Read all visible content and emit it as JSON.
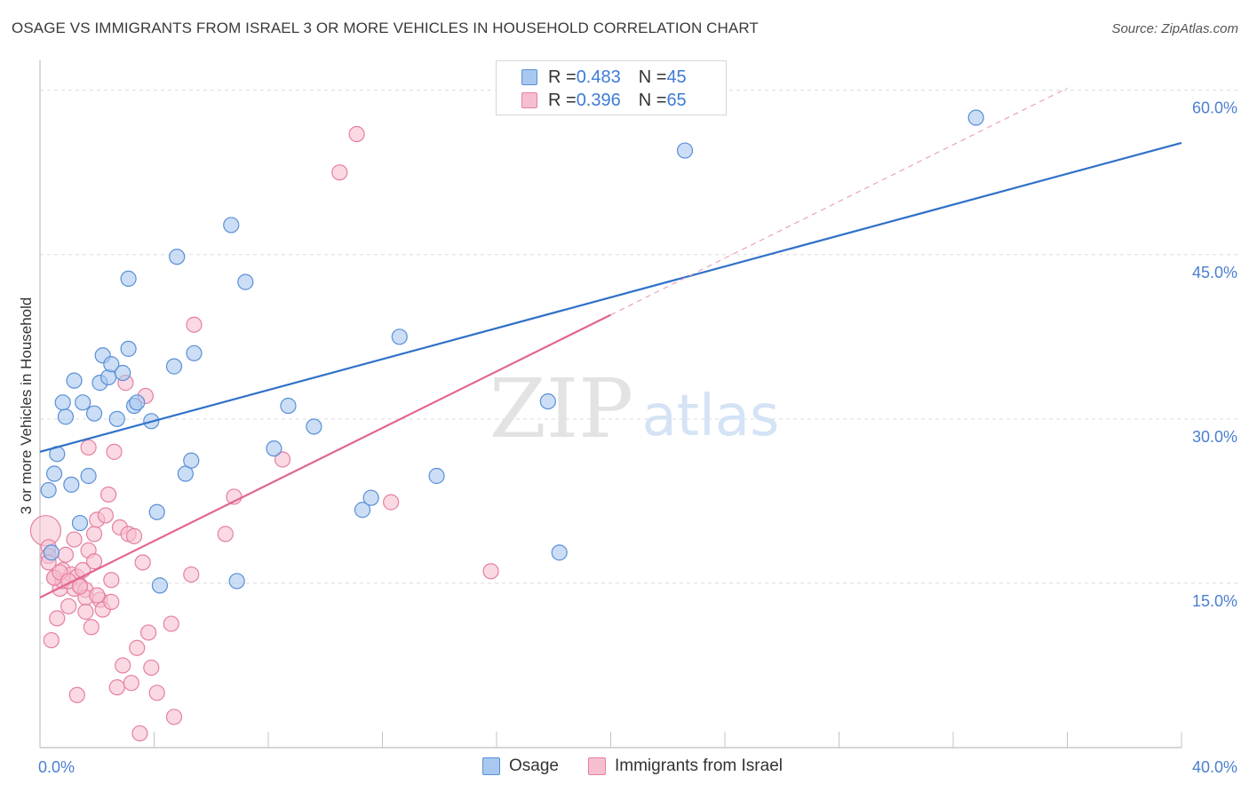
{
  "title": "OSAGE VS IMMIGRANTS FROM ISRAEL 3 OR MORE VEHICLES IN HOUSEHOLD CORRELATION CHART",
  "source": "Source: ZipAtlas.com",
  "watermark": {
    "zip": "ZIP",
    "atlas": "atlas"
  },
  "legend_top": [
    {
      "r_label": "R = ",
      "r_value": "0.483",
      "n_label": "N = ",
      "n_value": "45"
    },
    {
      "r_label": "R = ",
      "r_value": "0.396",
      "n_label": "N = ",
      "n_value": "65"
    }
  ],
  "legend_bottom": [
    "Osage",
    "Immigrants from Israel"
  ],
  "colors": {
    "osage_fill": "#a9c8ef",
    "osage_stroke": "#5a8fd8",
    "osage_line": "#2f70c8",
    "israel_fill": "#f6bfd0",
    "israel_stroke": "#e5809f",
    "israel_line": "#e0678f",
    "tick_text": "#4a7fd0",
    "grid": "#dcdcdc"
  },
  "chart_data": {
    "type": "scatter",
    "title": "OSAGE VS IMMIGRANTS FROM ISRAEL 3 OR MORE VEHICLES IN HOUSEHOLD CORRELATION CHART",
    "xlabel": "",
    "ylabel": "3 or more Vehicles in Household",
    "xlim": [
      0,
      40
    ],
    "ylim": [
      0,
      62
    ],
    "x_tick_labels": [
      {
        "value": 0,
        "label": "0.0%"
      },
      {
        "value": 40,
        "label": "40.0%"
      }
    ],
    "y_tick_labels": [
      {
        "value": 15,
        "label": "15.0%"
      },
      {
        "value": 30,
        "label": "30.0%"
      },
      {
        "value": 45,
        "label": "45.0%"
      },
      {
        "value": 60,
        "label": "60.0%"
      }
    ],
    "grid": true,
    "legend_position": "top-center",
    "series": [
      {
        "name": "Osage",
        "r": 0.483,
        "n": 45,
        "trend": {
          "x0": 0,
          "y0": 27.0,
          "x1": 40,
          "y1": 55.2,
          "dashed_extension": false
        },
        "points": [
          [
            0.3,
            23.5
          ],
          [
            0.4,
            17.8
          ],
          [
            0.5,
            25.0
          ],
          [
            0.6,
            26.8
          ],
          [
            0.8,
            31.5
          ],
          [
            0.9,
            30.2
          ],
          [
            1.1,
            24.0
          ],
          [
            1.2,
            33.5
          ],
          [
            1.4,
            20.5
          ],
          [
            1.5,
            31.5
          ],
          [
            1.7,
            24.8
          ],
          [
            1.9,
            30.5
          ],
          [
            2.1,
            33.3
          ],
          [
            2.2,
            35.8
          ],
          [
            2.4,
            33.8
          ],
          [
            2.5,
            35.0
          ],
          [
            2.7,
            30.0
          ],
          [
            2.9,
            34.2
          ],
          [
            3.1,
            42.8
          ],
          [
            3.1,
            36.4
          ],
          [
            3.3,
            31.2
          ],
          [
            3.4,
            31.5
          ],
          [
            3.9,
            29.8
          ],
          [
            4.1,
            21.5
          ],
          [
            4.2,
            14.8
          ],
          [
            4.7,
            34.8
          ],
          [
            4.8,
            44.8
          ],
          [
            5.1,
            25.0
          ],
          [
            5.3,
            26.2
          ],
          [
            5.4,
            36.0
          ],
          [
            6.7,
            47.7
          ],
          [
            6.9,
            15.2
          ],
          [
            7.2,
            42.5
          ],
          [
            8.2,
            27.3
          ],
          [
            8.7,
            31.2
          ],
          [
            9.6,
            29.3
          ],
          [
            11.3,
            21.7
          ],
          [
            11.6,
            22.8
          ],
          [
            12.6,
            37.5
          ],
          [
            13.9,
            24.8
          ],
          [
            17.8,
            31.6
          ],
          [
            18.2,
            17.8
          ],
          [
            22.6,
            54.5
          ],
          [
            23.2,
            58.7
          ],
          [
            32.8,
            57.5
          ]
        ]
      },
      {
        "name": "Immigrants from Israel",
        "r": 0.396,
        "n": 65,
        "trend": {
          "x0": 0,
          "y0": 13.7,
          "x1": 20,
          "y1": 39.5,
          "dashed_extension": true,
          "dashed_to": {
            "x": 36,
            "y": 60.2
          }
        },
        "points": [
          [
            0.2,
            19.8
          ],
          [
            0.3,
            18.3
          ],
          [
            0.3,
            17.5
          ],
          [
            0.4,
            9.8
          ],
          [
            0.5,
            15.5
          ],
          [
            0.6,
            11.8
          ],
          [
            0.7,
            14.5
          ],
          [
            0.8,
            15.2
          ],
          [
            0.8,
            16.2
          ],
          [
            0.9,
            17.6
          ],
          [
            1.0,
            12.9
          ],
          [
            1.1,
            15.8
          ],
          [
            1.2,
            19.0
          ],
          [
            1.2,
            14.5
          ],
          [
            1.3,
            15.6
          ],
          [
            1.3,
            4.8
          ],
          [
            1.4,
            14.8
          ],
          [
            1.5,
            16.2
          ],
          [
            1.6,
            14.4
          ],
          [
            1.6,
            13.7
          ],
          [
            1.6,
            12.4
          ],
          [
            1.7,
            27.4
          ],
          [
            1.7,
            18.0
          ],
          [
            1.8,
            11.0
          ],
          [
            1.9,
            17.0
          ],
          [
            1.9,
            19.5
          ],
          [
            2.0,
            20.8
          ],
          [
            2.1,
            13.5
          ],
          [
            2.2,
            12.6
          ],
          [
            2.3,
            21.2
          ],
          [
            2.4,
            23.1
          ],
          [
            2.5,
            13.3
          ],
          [
            2.5,
            15.3
          ],
          [
            2.6,
            27.0
          ],
          [
            2.7,
            5.5
          ],
          [
            2.8,
            20.1
          ],
          [
            2.9,
            7.5
          ],
          [
            3.0,
            33.3
          ],
          [
            3.1,
            19.5
          ],
          [
            3.2,
            5.9
          ],
          [
            3.3,
            19.3
          ],
          [
            3.4,
            9.1
          ],
          [
            3.5,
            1.3
          ],
          [
            3.6,
            16.9
          ],
          [
            3.7,
            32.1
          ],
          [
            3.8,
            10.5
          ],
          [
            3.9,
            7.3
          ],
          [
            4.1,
            5.0
          ],
          [
            4.6,
            11.3
          ],
          [
            4.7,
            2.8
          ],
          [
            5.3,
            15.8
          ],
          [
            5.4,
            38.6
          ],
          [
            6.5,
            19.5
          ],
          [
            6.8,
            22.9
          ],
          [
            8.5,
            26.3
          ],
          [
            10.5,
            52.5
          ],
          [
            11.1,
            56.0
          ],
          [
            12.3,
            22.4
          ],
          [
            15.8,
            16.1
          ],
          [
            0.3,
            16.9
          ],
          [
            0.5,
            15.5
          ],
          [
            0.7,
            16.0
          ],
          [
            1.0,
            15.2
          ],
          [
            1.4,
            14.7
          ],
          [
            2.0,
            13.9
          ]
        ]
      }
    ]
  }
}
